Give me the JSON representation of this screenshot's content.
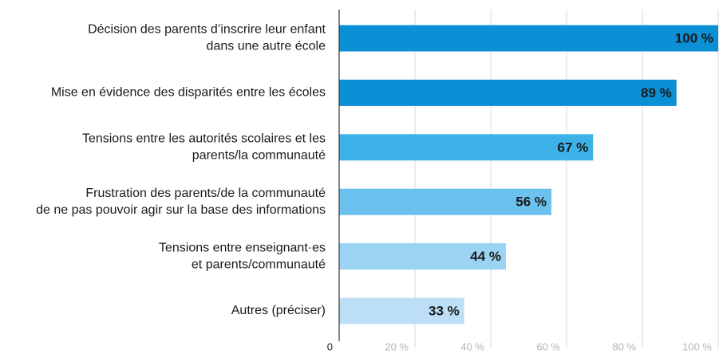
{
  "chart_data": {
    "type": "bar",
    "orientation": "horizontal",
    "categories": [
      [
        "Décision des parents d’inscrire leur enfant",
        "dans une autre école"
      ],
      [
        "Mise en évidence des disparités entre les écoles"
      ],
      [
        "Tensions entre les autorités scolaires et les",
        "parents/la communauté"
      ],
      [
        "Frustration des parents/de la communauté",
        "de ne pas pouvoir agir sur la base des informations"
      ],
      [
        "Tensions entre enseignant·es",
        "et parents/communauté"
      ],
      [
        "Autres (préciser)"
      ]
    ],
    "values": [
      100,
      89,
      67,
      56,
      44,
      33
    ],
    "value_labels": [
      "100 %",
      "89 %",
      "67 %",
      "56 %",
      "44 %",
      "33 %"
    ],
    "colors": [
      "#0b8fd5",
      "#0b8fd5",
      "#3cb2e8",
      "#6cc2ee",
      "#9bd3f3",
      "#bddff6"
    ],
    "xlim": [
      0,
      100
    ],
    "xticks": [
      0,
      {
        "value": 20,
        "label": "20 %"
      },
      {
        "value": 40,
        "label": "40 %"
      },
      {
        "value": 60,
        "label": "60 %"
      },
      {
        "value": 80,
        "label": "80 %"
      },
      {
        "value": 100,
        "label": "100 %"
      }
    ],
    "grid": true
  }
}
